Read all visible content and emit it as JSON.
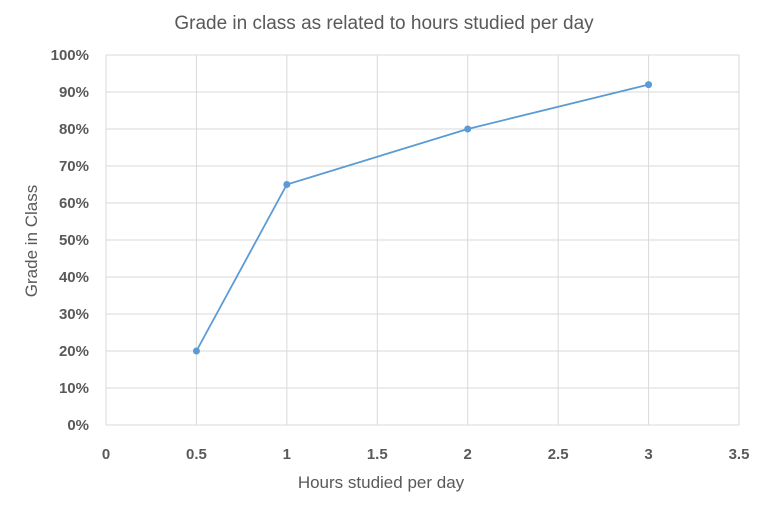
{
  "chart_data": {
    "type": "scatter",
    "title": "Grade in class as related to hours studied per day",
    "xlabel": "Hours studied per day",
    "ylabel": "Grade in Class",
    "xlim": [
      0,
      3.5
    ],
    "ylim": [
      0,
      1.0
    ],
    "x_ticks": [
      "0",
      "0.5",
      "1",
      "1.5",
      "2",
      "2.5",
      "3",
      "3.5"
    ],
    "y_ticks": [
      "0%",
      "10%",
      "20%",
      "30%",
      "40%",
      "50%",
      "60%",
      "70%",
      "80%",
      "90%",
      "100%"
    ],
    "grid": true,
    "line_style": "straight-lines-with-markers",
    "series": [
      {
        "x": [
          0.5,
          1,
          2,
          3
        ],
        "y": [
          0.2,
          0.65,
          0.8,
          0.92
        ],
        "color": "#5b9bd5"
      }
    ]
  }
}
